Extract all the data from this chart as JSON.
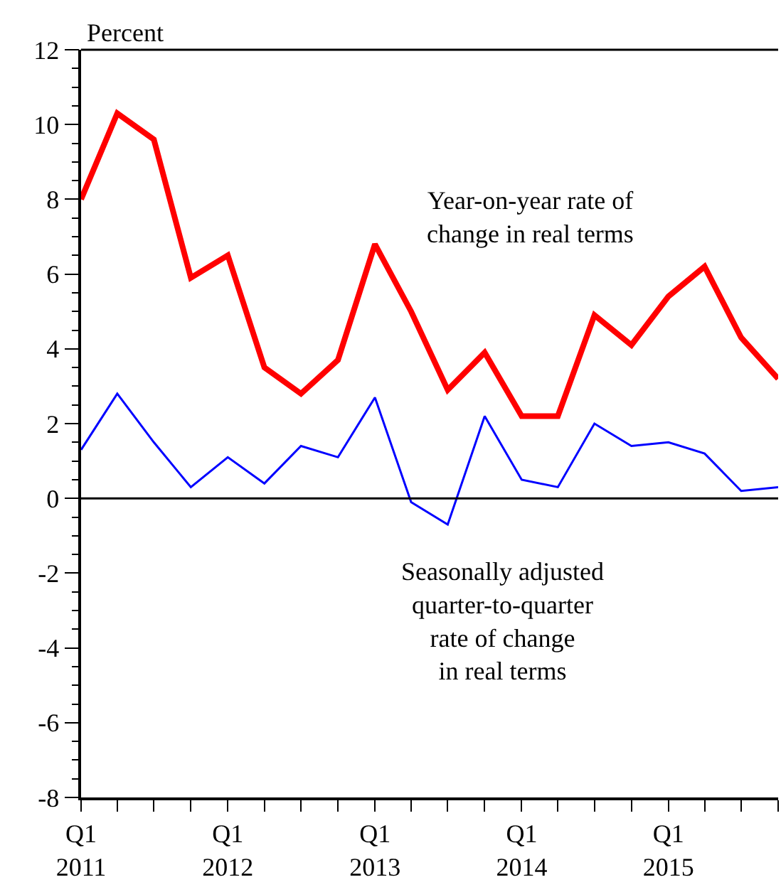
{
  "chart_data": {
    "type": "line",
    "ylabel": "Percent",
    "x": [
      "2011-01",
      "2011-04",
      "2011-07",
      "2011-10",
      "2012-01",
      "2012-04",
      "2012-07",
      "2012-10",
      "2013-01",
      "2013-04",
      "2013-07",
      "2013-10",
      "2014-01",
      "2014-04",
      "2014-07",
      "2014-10",
      "2015-01",
      "2015-04",
      "2015-07",
      "2015-10"
    ],
    "series": [
      {
        "name": "Year-on-year rate of\nchange in real terms",
        "color": "#ff0000",
        "values": [
          8.0,
          10.3,
          9.6,
          5.9,
          6.5,
          3.5,
          2.8,
          3.7,
          6.8,
          5.0,
          2.9,
          3.9,
          2.2,
          2.2,
          4.9,
          4.1,
          5.4,
          6.2,
          4.3,
          3.2
        ]
      },
      {
        "name": "Seasonally adjusted\nquarter-to-quarter\nrate of change\nin real terms",
        "color": "#0000ff",
        "values": [
          1.3,
          2.8,
          1.5,
          0.3,
          1.1,
          0.4,
          1.4,
          1.1,
          2.7,
          -0.1,
          -0.7,
          2.2,
          0.5,
          0.3,
          2.0,
          1.4,
          1.5,
          1.2,
          0.2,
          0.3
        ]
      }
    ],
    "xlim": [
      "2011-01",
      "2015-10"
    ],
    "xticks": [
      {
        "value": "2011-01",
        "label": "Q1\n2011"
      },
      {
        "value": "2011-04",
        "label": null
      },
      {
        "value": "2011-07",
        "label": null
      },
      {
        "value": "2011-10",
        "label": null
      },
      {
        "value": "2012-01",
        "label": "Q1\n2012"
      },
      {
        "value": "2012-04",
        "label": null
      },
      {
        "value": "2012-07",
        "label": null
      },
      {
        "value": "2012-10",
        "label": null
      },
      {
        "value": "2013-01",
        "label": "Q1\n2013"
      },
      {
        "value": "2013-04",
        "label": null
      },
      {
        "value": "2013-07",
        "label": null
      },
      {
        "value": "2013-10",
        "label": null
      },
      {
        "value": "2014-01",
        "label": "Q1\n2014"
      },
      {
        "value": "2014-04",
        "label": null
      },
      {
        "value": "2014-07",
        "label": null
      },
      {
        "value": "2014-10",
        "label": null
      },
      {
        "value": "2015-01",
        "label": "Q1\n2015"
      },
      {
        "value": "2015-04",
        "label": null
      },
      {
        "value": "2015-07",
        "label": null
      },
      {
        "value": "2015-10",
        "label": null
      }
    ],
    "ylim": [
      -8,
      12
    ],
    "yticks": [
      -8,
      -6,
      -4,
      -2,
      0,
      2,
      4,
      6,
      8,
      10,
      12
    ],
    "ref_lines": [
      {
        "axis": "y",
        "value": 0,
        "label": null,
        "color": "#000000"
      }
    ],
    "legend": false,
    "marker": "none",
    "line_style": "solid"
  }
}
